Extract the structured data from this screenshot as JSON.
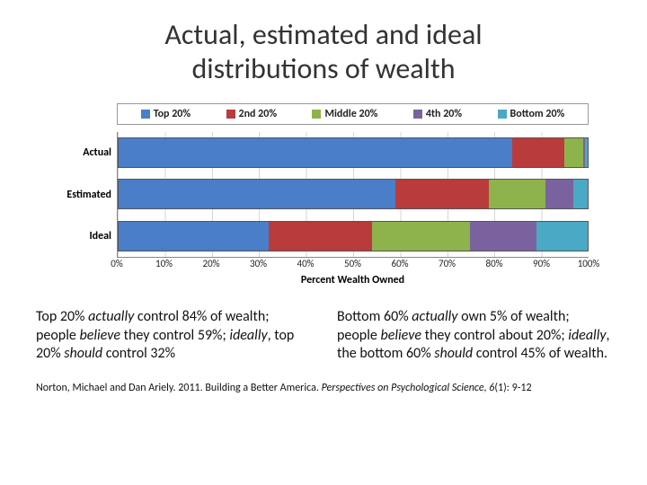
{
  "title_line1": "Actual, estimated and ideal",
  "title_line2": "distributions of wealth",
  "chart": {
    "type": "stacked-bar-horizontal",
    "xlabel": "Percent Wealth Owned",
    "xlim": [
      0,
      100
    ],
    "xtick_step": 10,
    "xticks": [
      "0%",
      "10%",
      "20%",
      "30%",
      "40%",
      "50%",
      "60%",
      "70%",
      "80%",
      "90%",
      "100%"
    ],
    "legend": [
      {
        "label": "Top 20%",
        "color": "#4a7ec8"
      },
      {
        "label": "2nd 20%",
        "color": "#b93b3b"
      },
      {
        "label": "Middle 20%",
        "color": "#8fb34c"
      },
      {
        "label": "4th 20%",
        "color": "#7a629e"
      },
      {
        "label": "Bottom 20%",
        "color": "#4aa9c4"
      }
    ],
    "rows": [
      {
        "label": "Actual",
        "values": [
          84,
          11,
          4,
          0.5,
          0.5
        ]
      },
      {
        "label": "Estimated",
        "values": [
          59,
          20,
          12,
          6,
          3
        ]
      },
      {
        "label": "Ideal",
        "values": [
          32,
          22,
          21,
          14,
          11
        ]
      }
    ],
    "bar_border_color": "#555555",
    "grid_color": "#d6d6d6",
    "background_color": "#ffffff",
    "label_fontsize": 12,
    "tick_fontsize": 11
  },
  "caption_left_parts": [
    {
      "t": "Top 20% "
    },
    {
      "t": "actually",
      "i": true
    },
    {
      "t": " control 84% of wealth; people "
    },
    {
      "t": "believe",
      "i": true
    },
    {
      "t": " they control 59%; "
    },
    {
      "t": "ideally",
      "i": true
    },
    {
      "t": ", top 20% "
    },
    {
      "t": "should",
      "i": true
    },
    {
      "t": " control 32%"
    }
  ],
  "caption_right_parts": [
    {
      "t": "Bottom 60% "
    },
    {
      "t": "actually",
      "i": true
    },
    {
      "t": " own 5% of wealth; people "
    },
    {
      "t": "believe",
      "i": true
    },
    {
      "t": " they control about 20%; "
    },
    {
      "t": "ideally",
      "i": true
    },
    {
      "t": ", the bottom 60% "
    },
    {
      "t": "should",
      "i": true
    },
    {
      "t": " control 45% of wealth."
    }
  ],
  "citation_parts": [
    {
      "t": "Norton, Michael and Dan Ariely. 2011. Building a Better America. "
    },
    {
      "t": "Perspectives on Psychological Science, 6",
      "i": true
    },
    {
      "t": "(1): 9-12"
    }
  ]
}
